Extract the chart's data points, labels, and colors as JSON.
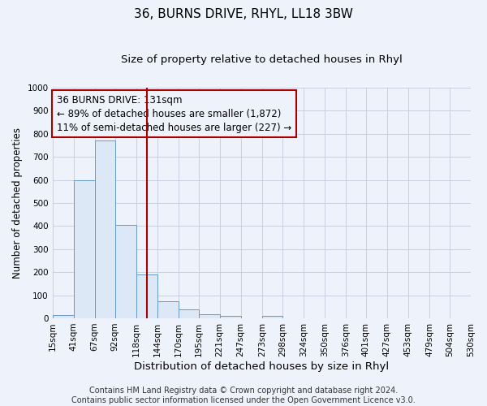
{
  "title": "36, BURNS DRIVE, RHYL, LL18 3BW",
  "subtitle": "Size of property relative to detached houses in Rhyl",
  "xlabel": "Distribution of detached houses by size in Rhyl",
  "ylabel": "Number of detached properties",
  "bin_edges": [
    15,
    41,
    67,
    92,
    118,
    144,
    170,
    195,
    221,
    247,
    273,
    298,
    324,
    350,
    376,
    401,
    427,
    453,
    479,
    504,
    530
  ],
  "bin_heights": [
    15,
    600,
    770,
    405,
    190,
    75,
    40,
    18,
    10,
    0,
    10,
    0,
    0,
    0,
    0,
    0,
    0,
    0,
    0,
    0
  ],
  "bar_facecolor": "#dce8f5",
  "bar_edgecolor": "#6699cc",
  "grid_color": "#c8d0e0",
  "background_color": "#eef2fa",
  "property_line_x": 131,
  "property_line_color": "#aa0000",
  "annotation_line1": "36 BURNS DRIVE: 131sqm",
  "annotation_line2": "← 89% of detached houses are smaller (1,872)",
  "annotation_line3": "11% of semi-detached houses are larger (227) →",
  "annotation_fontsize": 8.5,
  "ylim": [
    0,
    1000
  ],
  "yticks": [
    0,
    100,
    200,
    300,
    400,
    500,
    600,
    700,
    800,
    900,
    1000
  ],
  "xtick_labels": [
    "15sqm",
    "41sqm",
    "67sqm",
    "92sqm",
    "118sqm",
    "144sqm",
    "170sqm",
    "195sqm",
    "221sqm",
    "247sqm",
    "273sqm",
    "298sqm",
    "324sqm",
    "350sqm",
    "376sqm",
    "401sqm",
    "427sqm",
    "453sqm",
    "479sqm",
    "504sqm",
    "530sqm"
  ],
  "footer_line1": "Contains HM Land Registry data © Crown copyright and database right 2024.",
  "footer_line2": "Contains public sector information licensed under the Open Government Licence v3.0.",
  "title_fontsize": 11,
  "subtitle_fontsize": 9.5,
  "xlabel_fontsize": 9.5,
  "ylabel_fontsize": 8.5,
  "tick_fontsize": 7.5,
  "footer_fontsize": 7
}
